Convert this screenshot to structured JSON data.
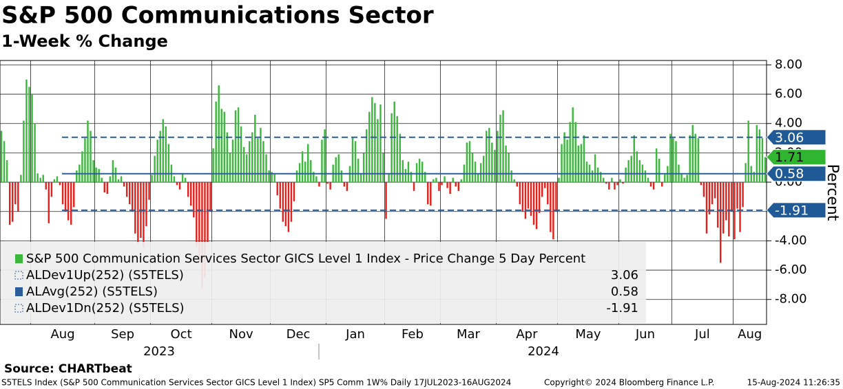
{
  "chart_data": {
    "type": "bar",
    "title": "S&P 500 Communications Sector",
    "subtitle": "1-Week % Change",
    "y_axis_label": "Percent",
    "source": "Source: CHARTbeat",
    "footer_left": "S5TELS Index (S&P 500 Communication Services Sector GICS Level 1 Index) SP5 Comm 1W%  Daily 17JUL2023-16AUG2024",
    "footer_mid": "Copyright© 2024 Bloomberg Finance L.P.",
    "footer_right": "15-Aug-2024 11:26:35",
    "years": [
      "2023",
      "2024"
    ],
    "months": [
      "Aug",
      "Sep",
      "Oct",
      "Nov",
      "Dec",
      "Jan",
      "Feb",
      "Mar",
      "Apr",
      "May",
      "Jun",
      "Jul",
      "Aug"
    ],
    "month_starts": [
      11,
      34,
      54,
      76,
      97,
      117,
      138,
      158,
      178,
      200,
      222,
      241,
      263
    ],
    "ylim": [
      -9.7,
      8.3
    ],
    "yticks": [
      {
        "value": 8,
        "label": "8.00"
      },
      {
        "value": 6,
        "label": "6.00"
      },
      {
        "value": 4,
        "label": "4.00"
      },
      {
        "value": 2,
        "label": "2.00"
      },
      {
        "value": 0,
        "label": "0.00"
      },
      {
        "value": -2,
        "label": "-2.00"
      },
      {
        "value": -4,
        "label": "-4.00"
      },
      {
        "value": -6,
        "label": "-6.00"
      },
      {
        "value": -8,
        "label": "-8.00"
      }
    ],
    "grid": true,
    "series": [
      {
        "name": "S&P 500 Communication Services Sector GICS Level 1 Index - Price Change 5 Day Percent",
        "color": "#3cb83c",
        "negative_color": "#e3201b",
        "values": [
          3.5,
          2.8,
          1.5,
          -2.9,
          -2.7,
          -1.5,
          -2.0,
          0.5,
          4.2,
          7.0,
          6.5,
          6.0,
          4.0,
          0.6,
          0.3,
          0.5,
          -0.5,
          -2.8,
          -1.0,
          0.2,
          0.4,
          -0.2,
          -1.5,
          -2.0,
          -2.6,
          -2.9,
          -1.7,
          0.8,
          1.2,
          2.1,
          3.0,
          4.2,
          3.5,
          1.5,
          1.0,
          0.9,
          0.3,
          -0.7,
          -0.8,
          0.4,
          1.5,
          1.0,
          0.2,
          0.4,
          -0.3,
          -1.0,
          -1.5,
          -2.0,
          -3.5,
          -4.2,
          -3.8,
          -4.5,
          -3.0,
          -1.2,
          0.5,
          1.8,
          2.9,
          3.5,
          4.3,
          3.8,
          2.6,
          1.2,
          0.4,
          -0.2,
          -0.5,
          0.6,
          0.3,
          -1.0,
          -1.6,
          -2.4,
          -4.4,
          -5.5,
          -7.3,
          -6.5,
          -4.1,
          -2.0,
          2.3,
          5.5,
          6.6,
          5.0,
          4.8,
          3.4,
          2.0,
          2.9,
          4.9,
          5.1,
          3.8,
          2.4,
          1.9,
          2.8,
          3.4,
          4.6,
          3.0,
          3.7,
          2.8,
          1.9,
          0.8,
          0.7,
          0.6,
          -0.9,
          -1.8,
          -2.7,
          -3.0,
          -3.4,
          -2.7,
          -1.3,
          0.8,
          1.3,
          2.1,
          1.4,
          2.6,
          1.5,
          0.7,
          0.4,
          -0.3,
          2.9,
          3.6,
          -0.1,
          -0.5,
          1.2,
          1.7,
          1.9,
          0.8,
          -0.3,
          -0.6,
          1.1,
          3.1,
          2.8,
          1.6,
          0.6,
          2.0,
          3.6,
          4.8,
          5.8,
          5.4,
          4.3,
          5.3,
          2.0,
          -2.5,
          0.6,
          4.7,
          5.5,
          4.5,
          3.3,
          1.5,
          0.9,
          1.4,
          0.7,
          -0.6,
          1.3,
          1.6,
          1.4,
          0.7,
          -1.5,
          -1.6,
          0.2,
          0.3,
          -0.6,
          -0.2,
          0.4,
          -0.4,
          -0.8,
          0.3,
          -0.3,
          -0.6,
          0.2,
          1.2,
          2.7,
          2.8,
          2.0,
          1.4,
          0.6,
          1.3,
          1.8,
          3.5,
          3.7,
          2.7,
          2.2,
          3.5,
          4.6,
          4.9,
          2.5,
          2.0,
          0.8,
          0.2,
          -0.3,
          -1.5,
          -2.0,
          -2.5,
          -1.8,
          -2.3,
          -2.9,
          -3.2,
          -2.1,
          -1.0,
          -0.4,
          -1.5,
          -3.4,
          -3.9,
          -2.0,
          0.3,
          2.6,
          3.4,
          2.9,
          4.1,
          5.1,
          4.1,
          2.5,
          2.6,
          3.2,
          1.4,
          1.2,
          0.8,
          1.9,
          1.0,
          0.7,
          0.3,
          -0.1,
          -0.5,
          0.3,
          -0.5,
          -0.2,
          0.2,
          -0.1,
          1.0,
          1.5,
          1.8,
          3.2,
          2.1,
          1.5,
          1.2,
          0.8,
          0.3,
          -0.3,
          -0.5,
          2.3,
          1.6,
          -0.3,
          0.6,
          1.1,
          3.3,
          3.0,
          2.8,
          1.2,
          0.6,
          0.3,
          0.5,
          3.2,
          3.9,
          3.3,
          3.0,
          -0.2,
          -1.0,
          -3.5,
          -2.2,
          -1.5,
          -1.1,
          -3.1,
          -5.5,
          -3.5,
          -2.6,
          -3.7,
          -2.0,
          -3.9,
          -1.8,
          -3.4,
          -1.7,
          1.3,
          4.2,
          1.1,
          0.7,
          3.9,
          3.6,
          3.0,
          1.71
        ]
      }
    ],
    "reference_lines": [
      {
        "name": "ALDev1Up(252) (S5TELS)",
        "value": 3.06,
        "color": "#2a5d9a",
        "style": "dashed"
      },
      {
        "name": "ALAvg(252) (S5TELS)",
        "value": 0.58,
        "color": "#2a5d9a",
        "style": "solid"
      },
      {
        "name": "ALDev1Dn(252) (S5TELS)",
        "value": -1.91,
        "color": "#2a5d9a",
        "style": "dashed"
      }
    ]
  }
}
